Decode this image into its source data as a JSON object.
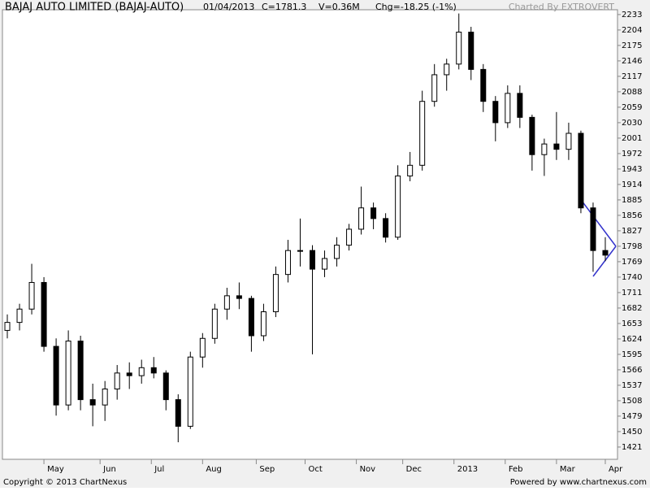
{
  "header": {
    "title": "BAJAJ AUTO LIMITED (BAJAJ-AUTO)",
    "date": "01/04/2013",
    "close": "C=1781.3",
    "volume": "V=0.36M",
    "change": "Chg=-18.25 (-1%)",
    "credit": "Charted By EXTROVERT"
  },
  "footer": {
    "copyright": "Copyright © 2013 ChartNexus",
    "powered": "Powered by www.chartnexus.com"
  },
  "chart_data": {
    "type": "candlestick",
    "x": [
      2,
      7,
      12,
      17,
      22,
      27,
      32,
      37,
      42,
      47,
      52,
      57,
      62,
      67,
      72,
      77,
      82,
      87,
      92,
      97,
      102,
      107,
      112,
      117,
      122,
      127,
      132,
      137,
      142,
      147,
      152,
      157,
      162,
      167,
      172,
      177,
      182,
      187,
      192,
      197,
      202,
      207,
      212,
      217,
      222,
      227,
      232,
      237,
      242,
      247
    ],
    "open": [
      1640,
      1655,
      1680,
      1730,
      1610,
      1500,
      1620,
      1510,
      1500,
      1530,
      1560,
      1555,
      1570,
      1560,
      1510,
      1460,
      1590,
      1625,
      1680,
      1705,
      1700,
      1630,
      1675,
      1745,
      1790,
      1790,
      1755,
      1775,
      1800,
      1830,
      1870,
      1850,
      1815,
      1930,
      1950,
      2070,
      2120,
      2140,
      2200,
      2130,
      2070,
      2030,
      2085,
      2040,
      1970,
      1990,
      1980,
      2010,
      1870,
      1790
    ],
    "high": [
      1670,
      1690,
      1765,
      1740,
      1625,
      1640,
      1630,
      1540,
      1545,
      1575,
      1580,
      1585,
      1590,
      1565,
      1520,
      1600,
      1635,
      1690,
      1720,
      1730,
      1705,
      1690,
      1760,
      1810,
      1850,
      1800,
      1790,
      1815,
      1840,
      1910,
      1880,
      1860,
      1950,
      1975,
      2090,
      2140,
      2150,
      2235,
      2210,
      2140,
      2080,
      2100,
      2100,
      2045,
      2000,
      2050,
      2030,
      2015,
      1880,
      1815
    ],
    "low": [
      1625,
      1640,
      1670,
      1600,
      1480,
      1490,
      1490,
      1460,
      1470,
      1510,
      1530,
      1540,
      1550,
      1490,
      1430,
      1455,
      1570,
      1615,
      1660,
      1680,
      1600,
      1620,
      1665,
      1730,
      1760,
      1595,
      1740,
      1760,
      1790,
      1820,
      1830,
      1805,
      1810,
      1920,
      1940,
      2060,
      2090,
      2130,
      2110,
      2050,
      1995,
      2020,
      2020,
      1940,
      1930,
      1960,
      1960,
      1860,
      1750,
      1770
    ],
    "close": [
      1655,
      1680,
      1730,
      1610,
      1500,
      1620,
      1510,
      1500,
      1530,
      1560,
      1555,
      1570,
      1560,
      1510,
      1460,
      1590,
      1625,
      1680,
      1705,
      1700,
      1630,
      1675,
      1745,
      1790,
      1790,
      1755,
      1775,
      1800,
      1830,
      1870,
      1850,
      1815,
      1930,
      1950,
      2070,
      2120,
      2140,
      2200,
      2130,
      2070,
      2030,
      2085,
      2040,
      1970,
      1990,
      1980,
      2010,
      1870,
      1790,
      1781.3
    ],
    "xlim": [
      0,
      252
    ],
    "xticks": [
      {
        "value": 17,
        "label": "May"
      },
      {
        "value": 40,
        "label": "Jun"
      },
      {
        "value": 61,
        "label": "Jul"
      },
      {
        "value": 82,
        "label": "Aug"
      },
      {
        "value": 104,
        "label": "Sep"
      },
      {
        "value": 124,
        "label": "Oct"
      },
      {
        "value": 145,
        "label": "Nov"
      },
      {
        "value": 164,
        "label": "Dec"
      },
      {
        "value": 185,
        "label": "2013"
      },
      {
        "value": 206,
        "label": "Feb"
      },
      {
        "value": 227,
        "label": "Mar"
      },
      {
        "value": 247,
        "label": "Apr"
      }
    ],
    "ylim": [
      1398,
      2242
    ],
    "yticks": [
      1421,
      1450,
      1479,
      1508,
      1537,
      1566,
      1595,
      1624,
      1653,
      1682,
      1711,
      1740,
      1769,
      1798,
      1827,
      1856,
      1885,
      1914,
      1943,
      1972,
      2001,
      2030,
      2059,
      2088,
      2117,
      2146,
      2175,
      2204,
      2233
    ],
    "up_color": "#ffffff",
    "down_color": "#000000",
    "wick_color": "#000000"
  }
}
